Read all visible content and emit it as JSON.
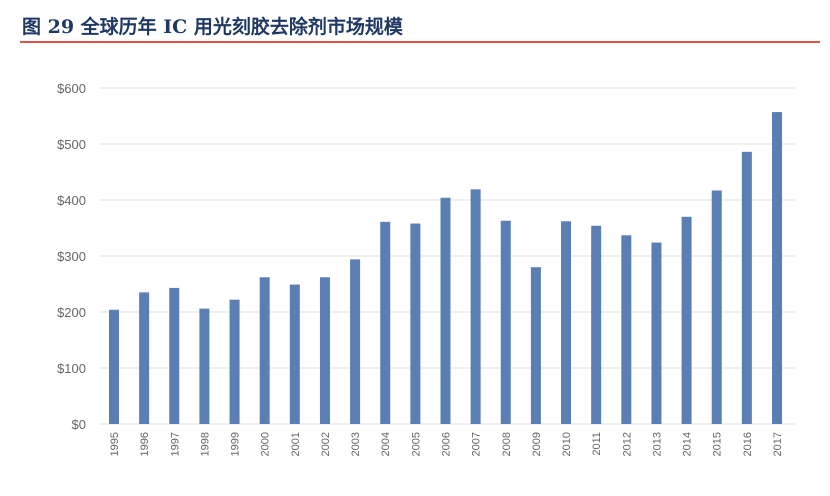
{
  "title": "图 29 全球历年 IC 用光刻胶去除剂市场规模",
  "colors": {
    "bar": "#5b7fb5",
    "grid": "#e0e0e0",
    "axis_text": "#666666",
    "rule": "#d9534f",
    "title": "#1f3864"
  },
  "chart_data": {
    "type": "bar",
    "title": "",
    "xlabel": "",
    "ylabel": "",
    "ylim": [
      0,
      600
    ],
    "grid": true,
    "y_ticks": [
      "$0",
      "$100",
      "$200",
      "$300",
      "$400",
      "$500",
      "$600"
    ],
    "categories": [
      "1995",
      "1996",
      "1997",
      "1998",
      "1999",
      "2000",
      "2001",
      "2002",
      "2003",
      "2004",
      "2005",
      "2006",
      "2007",
      "2008",
      "2009",
      "2010",
      "2011",
      "2012",
      "2013",
      "2014",
      "2015",
      "2016",
      "2017"
    ],
    "values": [
      204,
      235,
      243,
      206,
      222,
      262,
      249,
      262,
      294,
      361,
      358,
      404,
      419,
      363,
      280,
      362,
      354,
      337,
      324,
      370,
      417,
      486,
      557
    ]
  }
}
